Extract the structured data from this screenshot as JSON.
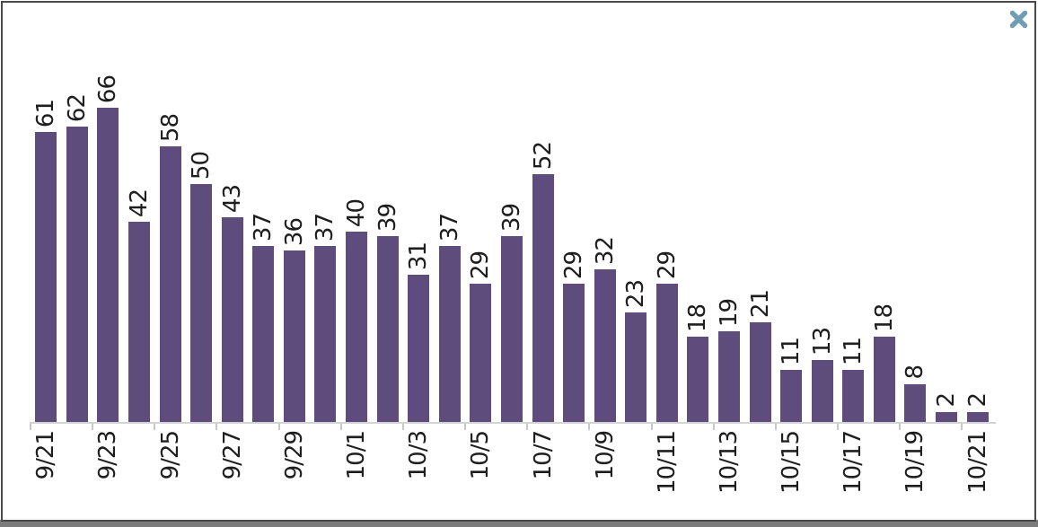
{
  "panel": {
    "background": "#ffffff",
    "border_color": "#4a4a4a",
    "bottom_strip_color": "#7c7c7c"
  },
  "close_button": {
    "color": "#6f9db3"
  },
  "chart_data": {
    "type": "bar",
    "title": "",
    "xlabel": "",
    "ylabel": "",
    "grid": false,
    "legend": false,
    "ylim": [
      0,
      70
    ],
    "bar_color": "#5e4c7c",
    "value_label_color": "#1e1e1e",
    "axis_color": "#d3d3d5",
    "value_labels_rotated_90": true,
    "x_labels_rotated_90": true,
    "x": [
      "9/21",
      "9/22",
      "9/23",
      "9/24",
      "9/25",
      "9/26",
      "9/27",
      "9/28",
      "9/29",
      "9/30",
      "10/1",
      "10/2",
      "10/3",
      "10/4",
      "10/5",
      "10/6",
      "10/7",
      "10/8",
      "10/9",
      "10/10",
      "10/11",
      "10/12",
      "10/13",
      "10/14",
      "10/15",
      "10/16",
      "10/17",
      "10/18",
      "10/19",
      "10/20",
      "10/21"
    ],
    "values": [
      61,
      62,
      66,
      42,
      58,
      50,
      43,
      37,
      36,
      37,
      40,
      39,
      31,
      37,
      29,
      39,
      52,
      29,
      32,
      23,
      29,
      18,
      19,
      21,
      11,
      13,
      11,
      18,
      8,
      2,
      2
    ],
    "x_tick_labels": [
      "9/21",
      "9/23",
      "9/25",
      "9/27",
      "9/29",
      "10/1",
      "10/3",
      "10/5",
      "10/7",
      "10/9",
      "10/11",
      "10/13",
      "10/15",
      "10/17",
      "10/19",
      "10/21"
    ]
  }
}
